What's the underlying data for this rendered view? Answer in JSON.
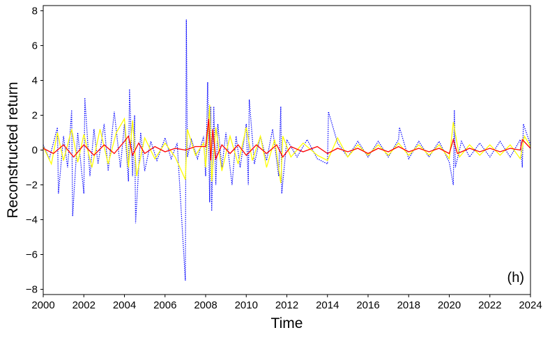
{
  "chart_data": {
    "type": "line",
    "title": "",
    "xlabel": "Time",
    "ylabel": "Reconstructed return",
    "panel_label": "(h)",
    "xlim": [
      2000,
      2024
    ],
    "ylim": [
      -8.3,
      8.3
    ],
    "x_ticks": [
      2000,
      2002,
      2004,
      2006,
      2008,
      2010,
      2012,
      2014,
      2016,
      2018,
      2020,
      2022,
      2024
    ],
    "x_tick_labels": [
      "2000",
      "2002",
      "2004",
      "2006",
      "2008",
      "2010",
      "2012",
      "2014",
      "2016",
      "2018",
      "2020",
      "2022",
      "2024"
    ],
    "y_ticks": [
      -8,
      -6,
      -4,
      -2,
      0,
      2,
      4,
      6,
      8
    ],
    "y_tick_labels": [
      "−8",
      "−6",
      "−4",
      "−2",
      "0",
      "2",
      "4",
      "6",
      "8"
    ],
    "grid": false,
    "series": [
      {
        "color": "#0000ff",
        "style": "dotted",
        "x": [
          2000.0,
          2000.3,
          2000.7,
          2000.75,
          2001.0,
          2001.2,
          2001.4,
          2001.45,
          2001.7,
          2002.0,
          2002.05,
          2002.3,
          2002.5,
          2002.7,
          2003.0,
          2003.2,
          2003.5,
          2003.8,
          2004.0,
          2004.2,
          2004.25,
          2004.4,
          2004.5,
          2004.55,
          2004.8,
          2005.0,
          2005.3,
          2005.6,
          2006.0,
          2006.3,
          2006.6,
          2007.0,
          2007.05,
          2007.1,
          2007.3,
          2007.6,
          2007.9,
          2008.0,
          2008.1,
          2008.2,
          2008.25,
          2008.3,
          2008.4,
          2008.5,
          2008.6,
          2008.8,
          2009.0,
          2009.3,
          2009.5,
          2009.7,
          2010.0,
          2010.1,
          2010.15,
          2010.4,
          2010.7,
          2011.0,
          2011.3,
          2011.6,
          2011.7,
          2011.75,
          2012.0,
          2012.5,
          2013.0,
          2013.5,
          2014.0,
          2014.05,
          2014.5,
          2015.0,
          2015.5,
          2016.0,
          2016.5,
          2017.0,
          2017.5,
          2017.55,
          2018.0,
          2018.5,
          2019.0,
          2019.5,
          2020.0,
          2020.2,
          2020.25,
          2020.3,
          2020.6,
          2021.0,
          2021.5,
          2022.0,
          2022.5,
          2023.0,
          2023.5,
          2023.6,
          2023.65,
          2024.0
        ],
        "y": [
          0.3,
          -0.5,
          1.3,
          -2.5,
          0.8,
          -1.0,
          2.3,
          -3.8,
          1.0,
          -2.5,
          3.0,
          -1.5,
          1.2,
          -0.8,
          1.5,
          -1.2,
          2.2,
          -1.0,
          1.5,
          -1.8,
          3.5,
          -1.5,
          2.0,
          -4.2,
          1.0,
          -1.2,
          0.5,
          -0.6,
          0.7,
          -0.5,
          0.4,
          -7.5,
          7.5,
          -0.4,
          0.6,
          -0.5,
          0.8,
          -1.5,
          3.9,
          -3.0,
          2.5,
          -3.5,
          2.5,
          -2.0,
          1.5,
          -1.0,
          1.0,
          -2.0,
          0.8,
          -1.0,
          1.5,
          -2.0,
          2.9,
          -0.8,
          0.8,
          -0.6,
          1.2,
          -1.5,
          2.5,
          -2.5,
          0.6,
          -0.4,
          0.6,
          -0.5,
          -0.8,
          2.2,
          0.4,
          -0.4,
          0.5,
          -0.4,
          0.5,
          -0.4,
          0.6,
          1.3,
          -0.5,
          0.5,
          -0.4,
          0.5,
          -0.7,
          -2.0,
          2.3,
          -1.0,
          0.5,
          -0.4,
          0.4,
          -0.4,
          0.5,
          -0.4,
          0.6,
          -1.0,
          1.5,
          0.3
        ]
      },
      {
        "color": "#ffff00",
        "style": "solid",
        "x": [
          2000.0,
          2000.4,
          2000.7,
          2001.0,
          2001.4,
          2001.7,
          2002.0,
          2002.4,
          2002.8,
          2003.2,
          2003.6,
          2004.0,
          2004.2,
          2004.4,
          2004.6,
          2005.0,
          2005.5,
          2006.0,
          2006.5,
          2007.0,
          2007.1,
          2007.5,
          2007.9,
          2008.0,
          2008.2,
          2008.3,
          2008.5,
          2008.8,
          2009.2,
          2009.6,
          2010.0,
          2010.3,
          2010.7,
          2011.0,
          2011.4,
          2011.7,
          2011.8,
          2012.2,
          2012.8,
          2013.5,
          2014.0,
          2014.5,
          2015.0,
          2015.5,
          2016.0,
          2016.5,
          2017.0,
          2017.5,
          2018.0,
          2018.5,
          2019.0,
          2019.5,
          2020.0,
          2020.2,
          2020.5,
          2021.0,
          2021.5,
          2022.0,
          2022.5,
          2023.0,
          2023.5,
          2023.7,
          2024.0
        ],
        "y": [
          0.2,
          -0.8,
          1.0,
          -0.6,
          1.2,
          -0.7,
          0.9,
          -1.0,
          1.2,
          -0.8,
          1.0,
          1.8,
          -1.0,
          1.7,
          -1.5,
          0.7,
          -0.5,
          0.4,
          -0.4,
          -1.7,
          1.2,
          -0.3,
          0.4,
          -1.0,
          2.6,
          -1.8,
          1.3,
          -1.2,
          0.8,
          -0.8,
          1.3,
          -0.6,
          0.8,
          -1.0,
          0.6,
          -1.9,
          0.8,
          -0.4,
          0.4,
          -0.3,
          -0.6,
          0.7,
          -0.4,
          0.3,
          -0.3,
          0.3,
          -0.3,
          0.4,
          -0.3,
          0.3,
          -0.3,
          0.3,
          -0.5,
          1.6,
          -0.4,
          0.3,
          -0.3,
          0.3,
          -0.3,
          0.3,
          -0.5,
          0.8,
          0.2
        ]
      },
      {
        "color": "#ff0000",
        "style": "solid",
        "x": [
          2000.0,
          2000.5,
          2001.0,
          2001.5,
          2002.0,
          2002.5,
          2003.0,
          2003.5,
          2004.0,
          2004.2,
          2004.4,
          2004.7,
          2005.0,
          2005.5,
          2006.0,
          2006.5,
          2007.0,
          2007.5,
          2008.0,
          2008.15,
          2008.25,
          2008.35,
          2008.5,
          2008.8,
          2009.2,
          2009.6,
          2010.0,
          2010.5,
          2011.0,
          2011.5,
          2011.8,
          2012.2,
          2012.8,
          2013.5,
          2014.0,
          2014.5,
          2015.0,
          2015.5,
          2016.0,
          2016.5,
          2017.0,
          2017.5,
          2018.0,
          2018.5,
          2019.0,
          2019.5,
          2020.0,
          2020.2,
          2020.4,
          2021.0,
          2021.5,
          2022.0,
          2022.5,
          2023.0,
          2023.5,
          2023.6,
          2024.0
        ],
        "y": [
          0.1,
          -0.2,
          0.3,
          -0.4,
          0.3,
          -0.3,
          0.3,
          -0.2,
          0.5,
          0.8,
          -0.3,
          0.4,
          -0.2,
          0.2,
          -0.1,
          0.1,
          0.0,
          0.2,
          0.2,
          1.8,
          -0.6,
          1.2,
          -0.5,
          0.3,
          -0.2,
          0.3,
          -0.3,
          0.3,
          -0.2,
          0.3,
          -0.4,
          0.2,
          -0.1,
          0.2,
          -0.2,
          0.1,
          -0.1,
          0.1,
          -0.2,
          0.1,
          -0.1,
          0.2,
          -0.1,
          0.1,
          -0.1,
          0.1,
          -0.2,
          0.6,
          -0.2,
          0.1,
          -0.1,
          0.1,
          -0.1,
          0.1,
          0.0,
          0.6,
          0.1
        ]
      }
    ]
  }
}
